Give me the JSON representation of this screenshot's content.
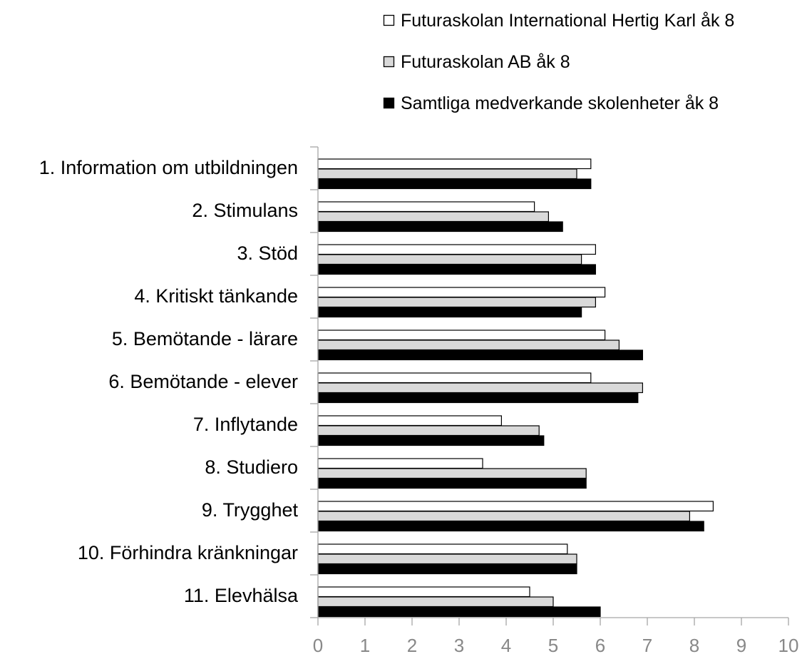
{
  "chart_data": {
    "type": "bar",
    "orientation": "horizontal",
    "categories": [
      "1. Information om utbildningen",
      "2. Stimulans",
      "3. Stöd",
      "4. Kritiskt tänkande",
      "5. Bemötande - lärare",
      "6. Bemötande - elever",
      "7. Inflytande",
      "8. Studiero",
      "9. Trygghet",
      "10. Förhindra kränkningar",
      "11. Elevhälsa"
    ],
    "series": [
      {
        "name": "Futuraskolan International Hertig Karl åk 8",
        "color": "#ffffff",
        "values": [
          5.8,
          4.6,
          5.9,
          6.1,
          6.1,
          5.8,
          3.9,
          3.5,
          8.4,
          5.3,
          4.5
        ]
      },
      {
        "name": "Futuraskolan AB åk 8",
        "color": "#d9d9d9",
        "values": [
          5.5,
          4.9,
          5.6,
          5.9,
          6.4,
          6.9,
          4.7,
          5.7,
          7.9,
          5.5,
          5.0
        ]
      },
      {
        "name": "Samtliga medverkande skolenheter åk 8",
        "color": "#000000",
        "values": [
          5.8,
          5.2,
          5.9,
          5.6,
          6.9,
          6.8,
          4.8,
          5.7,
          8.2,
          5.5,
          6.0
        ]
      }
    ],
    "xlim": [
      0,
      10
    ],
    "xticks": [
      "0",
      "1",
      "2",
      "3",
      "4",
      "5",
      "6",
      "7",
      "8",
      "9",
      "10"
    ],
    "legend": "top-right",
    "grid": false,
    "title": "",
    "xlabel": "",
    "ylabel": ""
  }
}
